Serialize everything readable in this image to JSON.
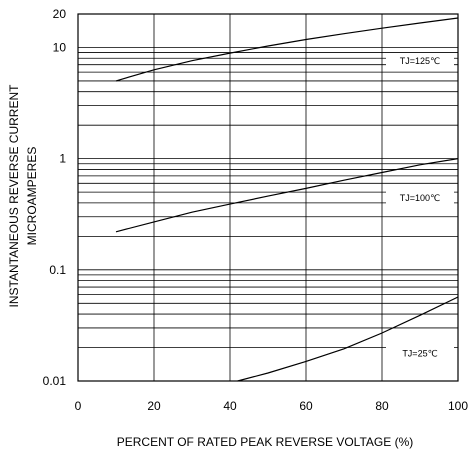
{
  "chart_data": {
    "type": "line",
    "xlabel": "PERCENT OF RATED PEAK REVERSE VOLTAGE (%)",
    "ylabel_lines": [
      "INSTANTANEOUS REVERSE CURRENT",
      "MICROAMPERES"
    ],
    "x_scale": "linear",
    "y_scale": "log",
    "xlim": [
      0,
      100
    ],
    "ylim": [
      0.01,
      20
    ],
    "x_ticks": [
      0,
      20,
      40,
      60,
      80,
      100
    ],
    "y_ticks": [
      {
        "value": 0.01,
        "label": "0.01"
      },
      {
        "value": 0.1,
        "label": "0.1"
      },
      {
        "value": 1,
        "label": "1"
      },
      {
        "value": 10,
        "label": "10"
      },
      {
        "value": 20,
        "label": "20"
      }
    ],
    "grid": true,
    "series": [
      {
        "name": "TJ=125℃",
        "x": [
          10,
          20,
          30,
          40,
          50,
          60,
          70,
          80,
          90,
          100
        ],
        "y": [
          5,
          6.3,
          7.6,
          8.9,
          10.3,
          11.8,
          13.3,
          14.9,
          16.6,
          18.4
        ]
      },
      {
        "name": "TJ=100℃",
        "x": [
          10,
          20,
          30,
          40,
          50,
          60,
          70,
          80,
          90,
          100
        ],
        "y": [
          0.22,
          0.27,
          0.33,
          0.39,
          0.46,
          0.54,
          0.64,
          0.75,
          0.88,
          1.0
        ]
      },
      {
        "name": "TJ=25℃",
        "x": [
          42,
          50,
          60,
          70,
          80,
          90,
          100
        ],
        "y": [
          0.01,
          0.0118,
          0.015,
          0.0195,
          0.027,
          0.039,
          0.057
        ]
      }
    ],
    "series_label_at_x": 90
  }
}
